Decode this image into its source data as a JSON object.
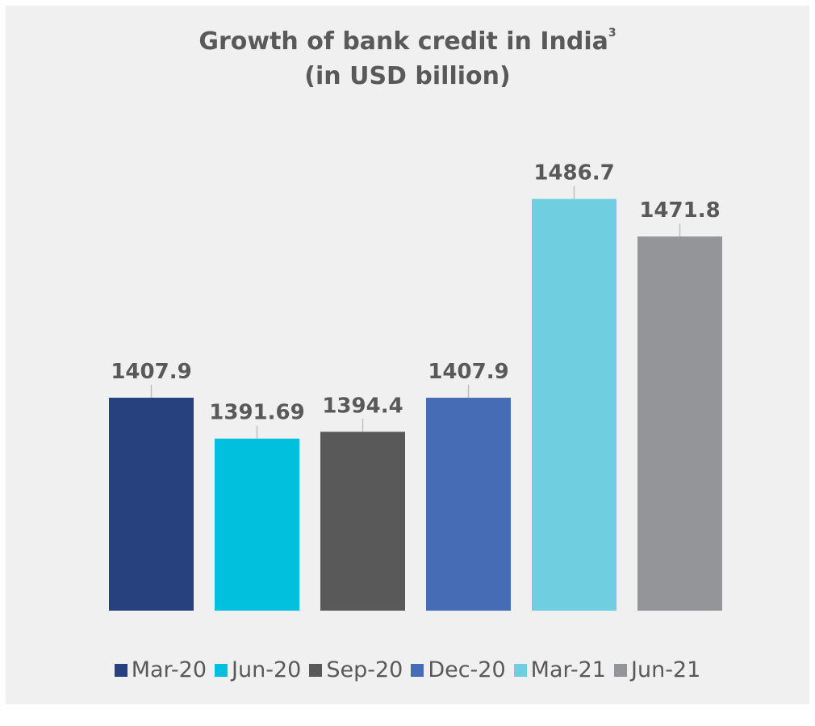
{
  "chart_data": {
    "type": "bar",
    "title": "Growth of bank credit in India",
    "title_superscript": "3",
    "subtitle": "(in USD billion)",
    "categories": [
      "Mar-20",
      "Jun-20",
      "Sep-20",
      "Dec-20",
      "Mar-21",
      "Jun-21"
    ],
    "values": [
      1407.9,
      1391.69,
      1394.4,
      1407.9,
      1486.7,
      1471.8
    ],
    "value_labels": [
      "1407.9",
      "1391.69",
      "1394.4",
      "1407.9",
      "1486.7",
      "1471.8"
    ],
    "colors": [
      "#27417e",
      "#00c0de",
      "#595959",
      "#456cb5",
      "#6fcfe0",
      "#939598"
    ],
    "ylim": [
      1323.5,
      1500
    ],
    "legend_position": "bottom",
    "grid": false,
    "show_value_axis": false
  }
}
